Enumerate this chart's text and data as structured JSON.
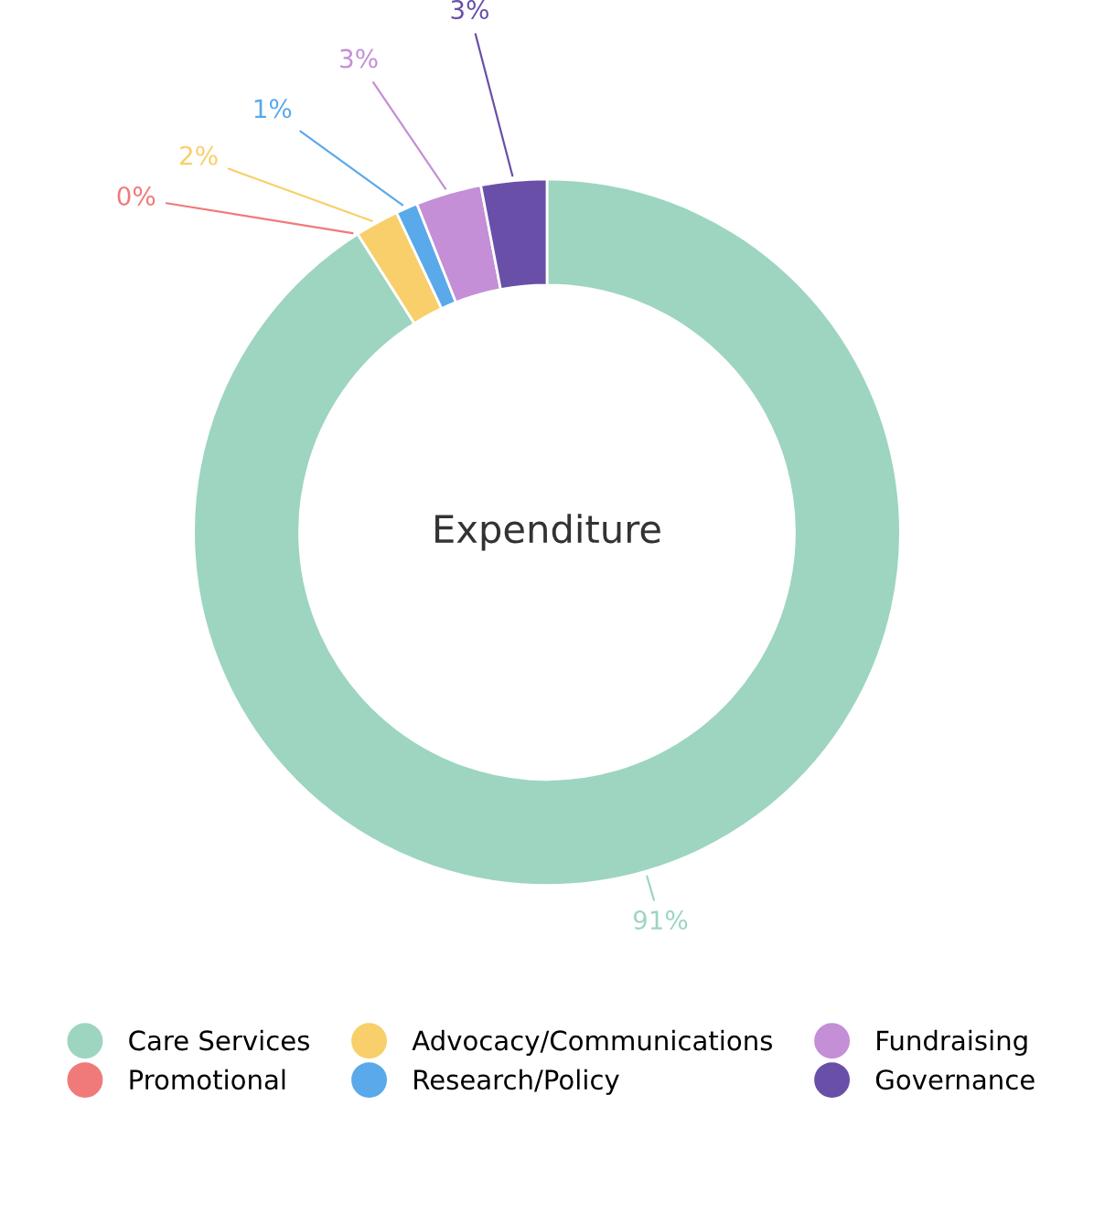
{
  "chart_data": {
    "type": "donut",
    "title": "Expenditure",
    "categories": [
      "Care Services",
      "Promotional",
      "Advocacy/Communications",
      "Research/Policy",
      "Fundraising",
      "Governance"
    ],
    "values": [
      91,
      0,
      2,
      1,
      3,
      3
    ],
    "colors": [
      "#9dd5c0",
      "#f07a7a",
      "#f8cf6a",
      "#5aa9ea",
      "#c48fd6",
      "#6a4fa8"
    ],
    "value_labels": [
      "91%",
      "0%",
      "2%",
      "1%",
      "3%",
      "3%"
    ],
    "legend": "bottom"
  }
}
